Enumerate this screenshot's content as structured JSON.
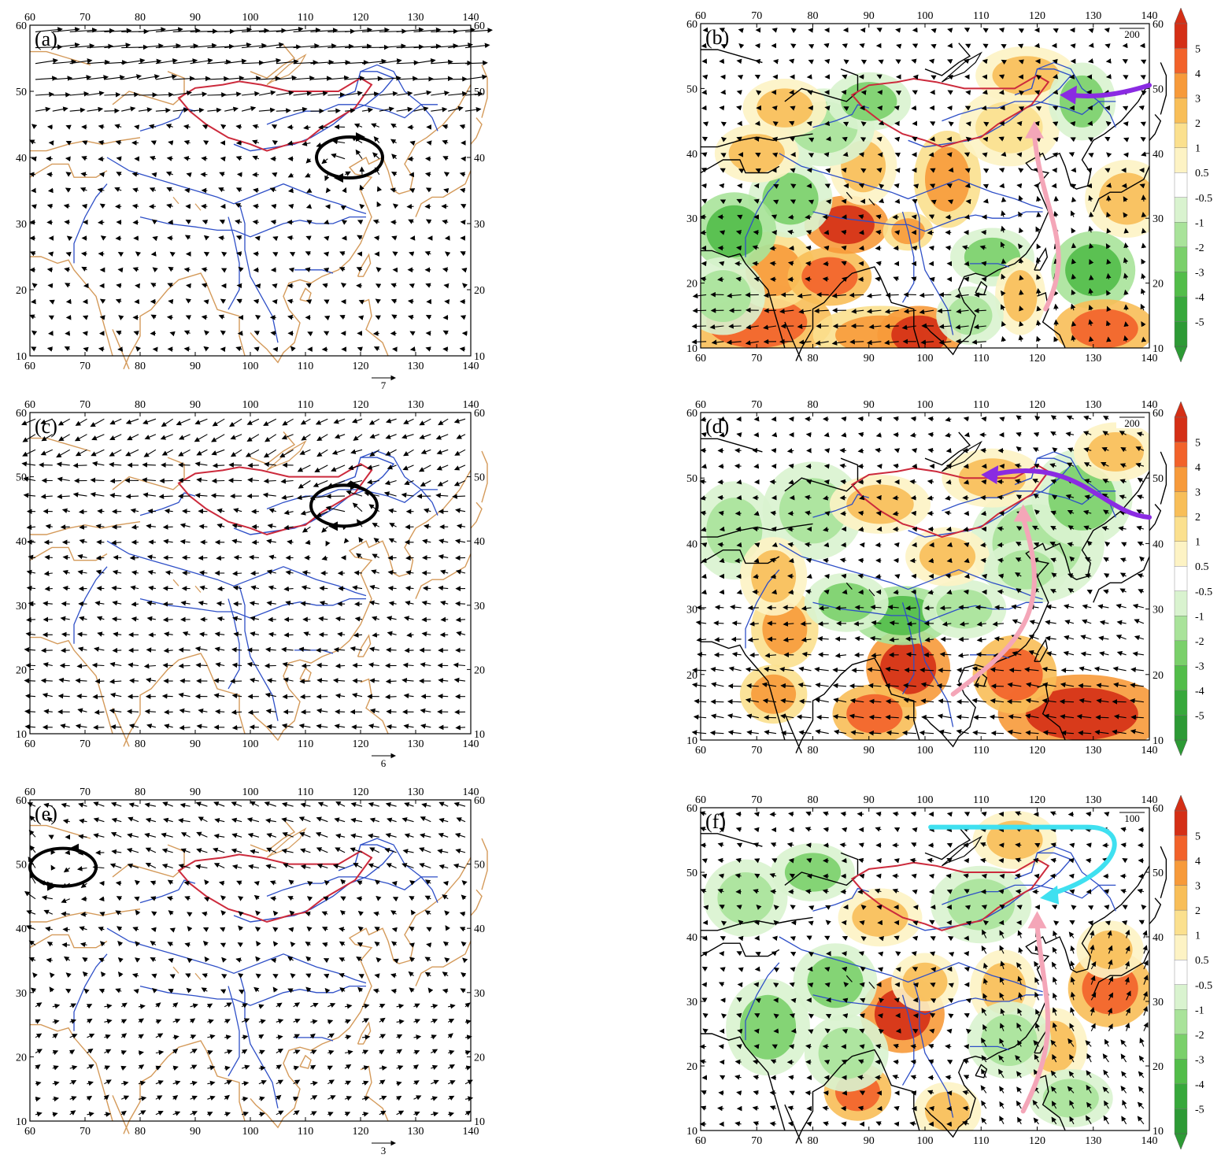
{
  "figure": {
    "panels": [
      {
        "id": "a",
        "label": "(a)",
        "type": "wind-vector",
        "ref_vector": "7",
        "circulation": "anticyclone-ring"
      },
      {
        "id": "b",
        "label": "(b)",
        "type": "moisture-flux-divergence",
        "ref_vector": "200",
        "arrows": [
          {
            "color": "#8a2be2",
            "meaning": "flow-from-east"
          },
          {
            "color": "#f4a6b8",
            "meaning": "flow-from-south"
          }
        ]
      },
      {
        "id": "c",
        "label": "(c)",
        "type": "wind-vector",
        "ref_vector": "6",
        "circulation": "anticyclone-ring"
      },
      {
        "id": "d",
        "label": "(d)",
        "type": "moisture-flux-divergence",
        "ref_vector": "200",
        "arrows": [
          {
            "color": "#8a2be2",
            "meaning": "flow-from-northeast"
          },
          {
            "color": "#f4a6b8",
            "meaning": "flow-from-south"
          }
        ]
      },
      {
        "id": "e",
        "label": "(e)",
        "type": "wind-vector",
        "ref_vector": "3",
        "circulation": "cyclone-ring-west"
      },
      {
        "id": "f",
        "label": "(f)",
        "type": "moisture-flux-divergence",
        "ref_vector": "100",
        "arrows": [
          {
            "color": "#3fe0f0",
            "meaning": "flow-from-north"
          },
          {
            "color": "#f4a6b8",
            "meaning": "flow-from-south"
          }
        ]
      }
    ],
    "x_ticks": [
      "60",
      "70",
      "80",
      "90",
      "100",
      "110",
      "120",
      "130",
      "140"
    ],
    "y_ticks": [
      "10",
      "20",
      "30",
      "40",
      "50",
      "60"
    ],
    "colorbar_labels": [
      "5",
      "4",
      "3",
      "2",
      "1",
      "0.5",
      "-0.5",
      "-1",
      "-2",
      "-3",
      "-4",
      "-5"
    ],
    "colorbar_colors": [
      "#d42f16",
      "#f2622a",
      "#f79a3a",
      "#f8be58",
      "#fbe08e",
      "#fdf3c4",
      "#ffffff",
      "#d9f3cf",
      "#a9e39a",
      "#7ad06a",
      "#52bd49",
      "#37a83b",
      "#2d9a35"
    ]
  }
}
